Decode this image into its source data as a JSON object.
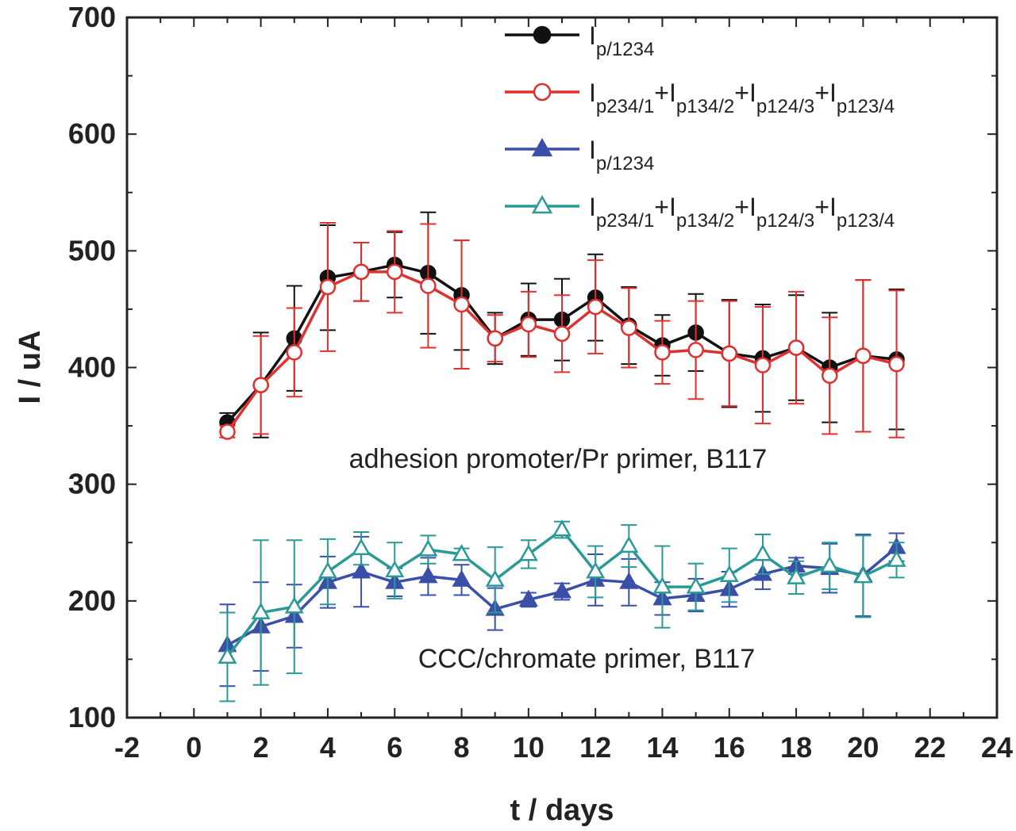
{
  "chart_data": {
    "type": "line",
    "title": "",
    "xlabel": "t / days",
    "ylabel": "I / uA",
    "xlim": [
      -2,
      24
    ],
    "ylim": [
      100,
      700
    ],
    "xticks": [
      -2,
      0,
      2,
      4,
      6,
      8,
      10,
      12,
      14,
      16,
      18,
      20,
      22,
      24
    ],
    "yticks": [
      100,
      200,
      300,
      400,
      500,
      600,
      700
    ],
    "grid": false,
    "legend_position": "top-right",
    "annotations": [
      {
        "text": "adhesion promoter/Pr primer, B117",
        "x": 11,
        "y": 330
      },
      {
        "text": "CCC/chromate primer, B117",
        "x": 11,
        "y": 150
      }
    ],
    "series": [
      {
        "name": "Ip/1234",
        "legend": {
          "main": "I",
          "sub": "p/1234"
        },
        "color": "#111111",
        "marker": "circle-filled",
        "x": [
          1,
          2,
          3,
          4,
          5,
          6,
          7,
          8,
          9,
          10,
          11,
          12,
          13,
          14,
          15,
          16,
          17,
          18,
          19,
          20,
          21
        ],
        "values": [
          353,
          385,
          425,
          477,
          482,
          488,
          481,
          462,
          425,
          441,
          441,
          460,
          436,
          419,
          430,
          412,
          408,
          417,
          400,
          410,
          407
        ],
        "err": [
          8,
          45,
          45,
          45,
          25,
          28,
          52,
          47,
          22,
          31,
          35,
          37,
          33,
          26,
          33,
          46,
          46,
          45,
          47,
          65,
          60
        ]
      },
      {
        "name": "Ip234/1+Ip134/2+Ip124/3+Ip123/4",
        "legend": {
          "parts": [
            [
              "I",
              "p234/1"
            ],
            [
              "I",
              "p134/2"
            ],
            [
              "I",
              "p124/3"
            ],
            [
              "I",
              "p123/4"
            ]
          ],
          "sep": "+"
        },
        "color": "#e03030",
        "marker": "circle-open",
        "x": [
          1,
          2,
          3,
          4,
          5,
          6,
          7,
          8,
          9,
          10,
          11,
          12,
          13,
          14,
          15,
          16,
          17,
          18,
          19,
          20,
          21
        ],
        "values": [
          345,
          385,
          413,
          469,
          482,
          482,
          470,
          454,
          425,
          437,
          429,
          452,
          434,
          413,
          415,
          412,
          402,
          417,
          393,
          410,
          403
        ],
        "err": [
          5,
          42,
          38,
          55,
          25,
          35,
          53,
          55,
          20,
          28,
          33,
          40,
          34,
          27,
          42,
          45,
          50,
          48,
          50,
          65,
          63
        ]
      },
      {
        "name": "Ip/1234",
        "legend": {
          "main": "I",
          "sub": "p/1234"
        },
        "color": "#3a4fa8",
        "marker": "triangle-filled",
        "x": [
          1,
          2,
          3,
          4,
          5,
          6,
          7,
          8,
          9,
          10,
          11,
          12,
          13,
          14,
          15,
          16,
          17,
          18,
          19,
          20,
          21
        ],
        "values": [
          162,
          178,
          187,
          216,
          225,
          216,
          221,
          218,
          193,
          201,
          208,
          218,
          216,
          202,
          205,
          210,
          223,
          230,
          228,
          222,
          246
        ],
        "err": [
          35,
          38,
          27,
          22,
          30,
          12,
          16,
          13,
          18,
          6,
          7,
          22,
          20,
          14,
          14,
          15,
          13,
          7,
          21,
          35,
          12
        ]
      },
      {
        "name": "Ip234/1+Ip134/2+Ip124/3+Ip123/4",
        "legend": {
          "parts": [
            [
              "I",
              "p234/1"
            ],
            [
              "I",
              "p134/2"
            ],
            [
              "I",
              "p124/3"
            ],
            [
              "I",
              "p123/4"
            ]
          ],
          "sep": "+"
        },
        "color": "#2a9a96",
        "marker": "triangle-open",
        "x": [
          1,
          2,
          3,
          4,
          5,
          6,
          7,
          8,
          9,
          10,
          11,
          12,
          13,
          14,
          15,
          16,
          17,
          18,
          19,
          20,
          21
        ],
        "values": [
          152,
          190,
          195,
          225,
          245,
          226,
          244,
          240,
          218,
          240,
          261,
          225,
          247,
          212,
          212,
          222,
          240,
          220,
          230,
          221,
          235
        ],
        "err": [
          38,
          62,
          57,
          28,
          14,
          24,
          12,
          5,
          28,
          12,
          7,
          22,
          18,
          35,
          20,
          23,
          17,
          14,
          20,
          35,
          15
        ]
      }
    ]
  }
}
